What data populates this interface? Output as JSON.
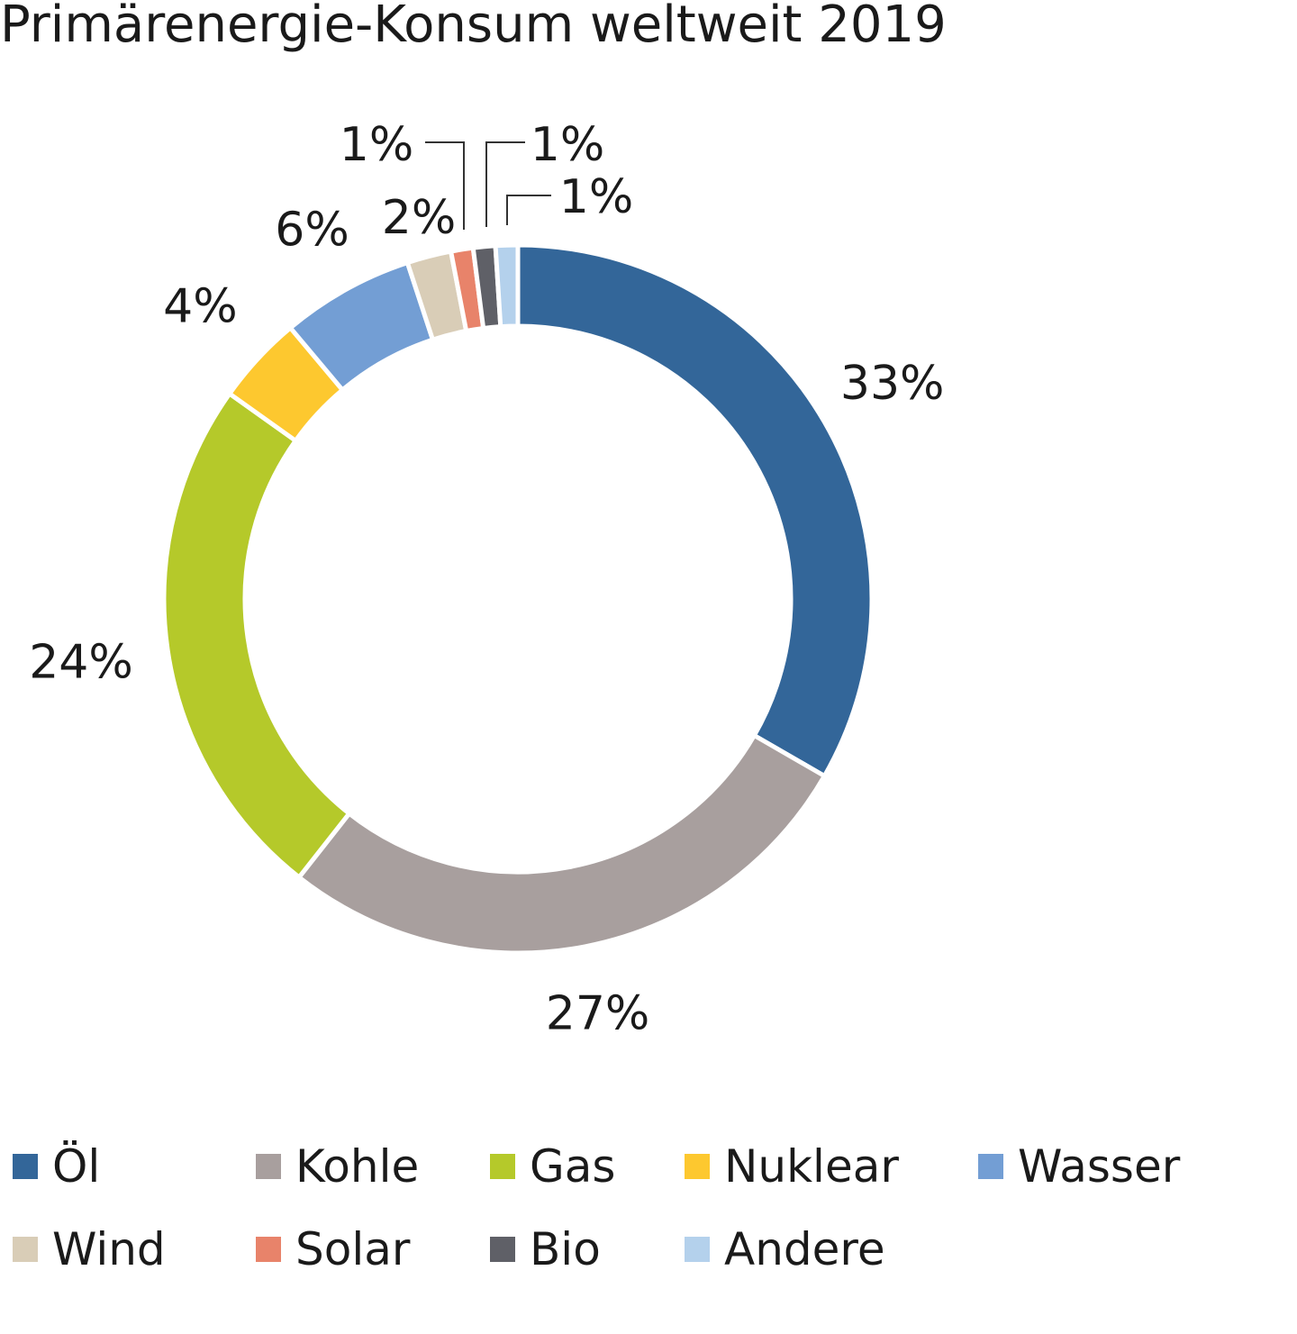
{
  "title": "Primärenergie-Konsum weltweit 2019",
  "chart_data": {
    "type": "pie",
    "donut": true,
    "title": "Primärenergie-Konsum weltweit 2019",
    "unit": "%",
    "legend_position": "bottom",
    "categories": [
      "Öl",
      "Kohle",
      "Gas",
      "Nuklear",
      "Wasser",
      "Wind",
      "Solar",
      "Bio",
      "Andere"
    ],
    "values": [
      33,
      27,
      24,
      4,
      6,
      2,
      1,
      1,
      1
    ],
    "labels": [
      "33%",
      "27%",
      "24%",
      "4%",
      "6%",
      "2%",
      "1%",
      "1%",
      "1%"
    ],
    "colors": [
      "#336699",
      "#a89f9e",
      "#b5c92a",
      "#fdc82f",
      "#739ed4",
      "#d9cdb7",
      "#e8836a",
      "#5f6067",
      "#b4d1ec"
    ]
  }
}
